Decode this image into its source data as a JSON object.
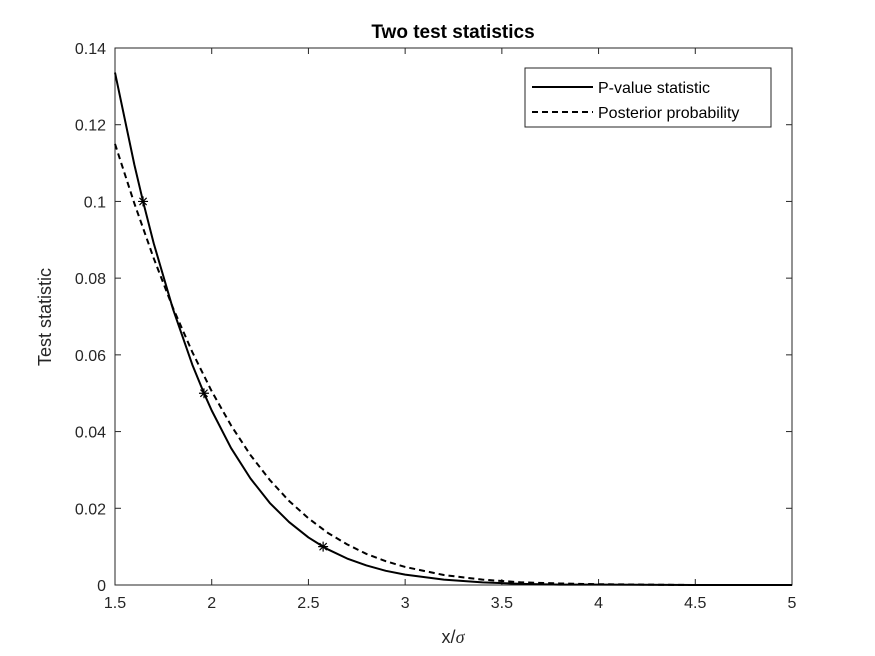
{
  "chart_data": {
    "type": "line",
    "title": "Two test statistics",
    "xlabel_main": "x/",
    "xlabel_sigma": "σ",
    "ylabel": "Test statistic",
    "xlim": [
      1.5,
      5
    ],
    "ylim": [
      0,
      0.14
    ],
    "x_ticks": [
      1.5,
      2,
      2.5,
      3,
      3.5,
      4,
      4.5,
      5
    ],
    "x_tick_labels": [
      "1.5",
      "2",
      "2.5",
      "3",
      "3.5",
      "4",
      "4.5",
      "5"
    ],
    "y_ticks": [
      0,
      0.02,
      0.04,
      0.06,
      0.08,
      0.1,
      0.12,
      0.14
    ],
    "y_tick_labels": [
      "0",
      "0.02",
      "0.04",
      "0.06",
      "0.08",
      "0.1",
      "0.12",
      "0.14"
    ],
    "grid": false,
    "legend_position": "top-right",
    "series": [
      {
        "name": "P-value statistic",
        "style": "solid",
        "color": "#000000",
        "x": [
          1.5,
          1.6,
          1.645,
          1.7,
          1.8,
          1.9,
          1.96,
          2.0,
          2.1,
          2.2,
          2.3,
          2.4,
          2.5,
          2.576,
          2.6,
          2.7,
          2.8,
          2.9,
          3.0,
          3.2,
          3.4,
          3.6,
          3.8,
          4.0,
          4.5,
          5.0
        ],
        "y": [
          0.1336,
          0.1096,
          0.1,
          0.0891,
          0.0719,
          0.0574,
          0.05,
          0.0455,
          0.0357,
          0.0278,
          0.0214,
          0.0164,
          0.0124,
          0.01,
          0.0093,
          0.0069,
          0.0051,
          0.0037,
          0.0027,
          0.0014,
          0.0007,
          0.0003,
          0.0001,
          0.0001,
          0.0,
          0.0
        ]
      },
      {
        "name": "Posterior probability",
        "style": "dashed",
        "color": "#000000",
        "x": [
          1.5,
          1.6,
          1.7,
          1.8,
          1.9,
          2.0,
          2.1,
          2.2,
          2.3,
          2.4,
          2.5,
          2.6,
          2.7,
          2.8,
          2.9,
          3.0,
          3.2,
          3.4,
          3.6,
          3.8,
          4.0,
          4.5,
          5.0
        ],
        "y": [
          0.115,
          0.0995,
          0.0852,
          0.0722,
          0.0607,
          0.0505,
          0.0416,
          0.0339,
          0.0274,
          0.0219,
          0.0174,
          0.0136,
          0.0106,
          0.0081,
          0.0062,
          0.0047,
          0.0026,
          0.0014,
          0.0007,
          0.0004,
          0.0002,
          0.0,
          0.0
        ]
      }
    ],
    "markers": {
      "symbol": "asterisk",
      "points": [
        {
          "x": 1.645,
          "y": 0.1
        },
        {
          "x": 1.96,
          "y": 0.05
        },
        {
          "x": 2.576,
          "y": 0.01
        }
      ]
    }
  }
}
